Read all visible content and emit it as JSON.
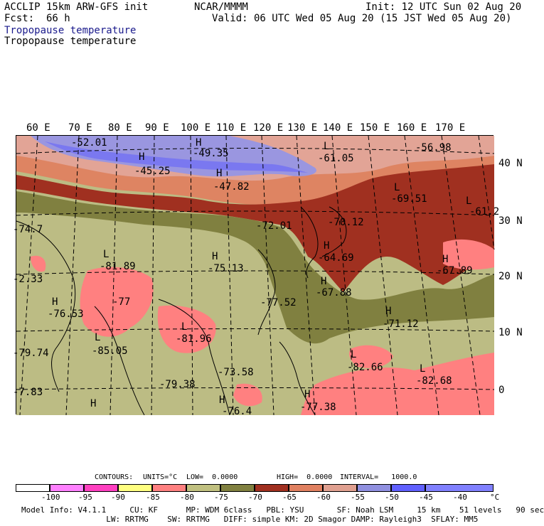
{
  "header": {
    "model": "ACCLIP 15km ARW-GFS init",
    "org": "NCAR/MMMM",
    "init": "Init: 12 UTC Sun 02 Aug 20",
    "fcst_label": "Fcst:",
    "fcst_value": "66 h",
    "valid": "Valid: 06 UTC Wed 05 Aug 20 (15 JST Wed 05 Aug 20)",
    "title1": "Tropopause temperature",
    "title2": "Tropopause temperature"
  },
  "axes": {
    "lon_labels": [
      "60 E",
      "70 E",
      "80 E",
      "90 E",
      "100 E",
      "110 E",
      "120 E",
      "130 E",
      "140 E",
      "150 E",
      "160 E",
      "170 E"
    ],
    "lat_labels": [
      "40 N",
      "30 N",
      "20 N",
      "10 N",
      "0"
    ]
  },
  "map_labels": [
    {
      "t": "-52.01"
    },
    {
      "t": "H"
    },
    {
      "t": "-45.25"
    },
    {
      "t": "H"
    },
    {
      "t": "-49.35"
    },
    {
      "t": "H"
    },
    {
      "t": "-47.82"
    },
    {
      "t": "L"
    },
    {
      "t": "-61.05"
    },
    {
      "t": "-56.98"
    },
    {
      "t": "L"
    },
    {
      "t": "-69.51"
    },
    {
      "t": "L"
    },
    {
      "t": "-61.2"
    },
    {
      "t": "-74.7"
    },
    {
      "t": "-72.01"
    },
    {
      "t": "-70.12"
    },
    {
      "t": "H"
    },
    {
      "t": "-64.69"
    },
    {
      "t": "H"
    },
    {
      "t": "-67.89"
    },
    {
      "t": "L"
    },
    {
      "t": "-81.89"
    },
    {
      "t": "H"
    },
    {
      "t": "-75.13"
    },
    {
      "t": "H"
    },
    {
      "t": "-67.88"
    },
    {
      "t": "-2.33"
    },
    {
      "t": "H"
    },
    {
      "t": "-76.53"
    },
    {
      "t": "-77"
    },
    {
      "t": "-77.52"
    },
    {
      "t": "H"
    },
    {
      "t": "-71.12"
    },
    {
      "t": "L"
    },
    {
      "t": "-81.96"
    },
    {
      "t": "L"
    },
    {
      "t": "-85.05"
    },
    {
      "t": "-79.74"
    },
    {
      "t": "L"
    },
    {
      "t": "-82.66"
    },
    {
      "t": "L"
    },
    {
      "t": "-82.68"
    },
    {
      "t": "-73.58"
    },
    {
      "t": "-79.38"
    },
    {
      "t": "H"
    },
    {
      "t": "-77.38"
    },
    {
      "t": "-7.83"
    },
    {
      "t": "H"
    },
    {
      "t": "H"
    },
    {
      "t": "-76.4"
    }
  ],
  "contours": {
    "contours_label": "CONTOURS:",
    "units": "UNITS=°C",
    "low": "LOW=  0.0000",
    "high": "HIGH=  0.0000",
    "interval": "INTERVAL=   1000.0"
  },
  "legend": {
    "labels": [
      "-100",
      "-95",
      "-90",
      "-85",
      "-80",
      "-75",
      "-70",
      "-65",
      "-60",
      "-55",
      "-50",
      "-45",
      "-40",
      "°C"
    ],
    "colors": [
      "#ffffff",
      "#ff80ff",
      "#ff40c0",
      "#ffff80",
      "#ff8080",
      "#c0c080",
      "#808040",
      "#a03020",
      "#e08060",
      "#e0a090",
      "#9090e0",
      "#6060ff",
      "#8080ff"
    ]
  },
  "footer": {
    "line1": "Model Info: V4.1.1     CU: KF      MP: WDM 6class   PBL: YSU       SF: Noah LSM     15 km    51 levels   90 sec",
    "line2": "                  LW: RRTMG    SW: RRTMG   DIFF: simple KM: 2D Smagor DAMP: Rayleigh3  SFLAY: MM5"
  },
  "colors": {
    "band_lightpurple": "#9a96e0",
    "band_purple": "#7a78f0",
    "band_salmon": "#e2a496",
    "band_orange": "#de8462",
    "band_red": "#a03020",
    "band_olive": "#808040",
    "band_khaki": "#bcbc84",
    "band_pink": "#ff8080"
  }
}
